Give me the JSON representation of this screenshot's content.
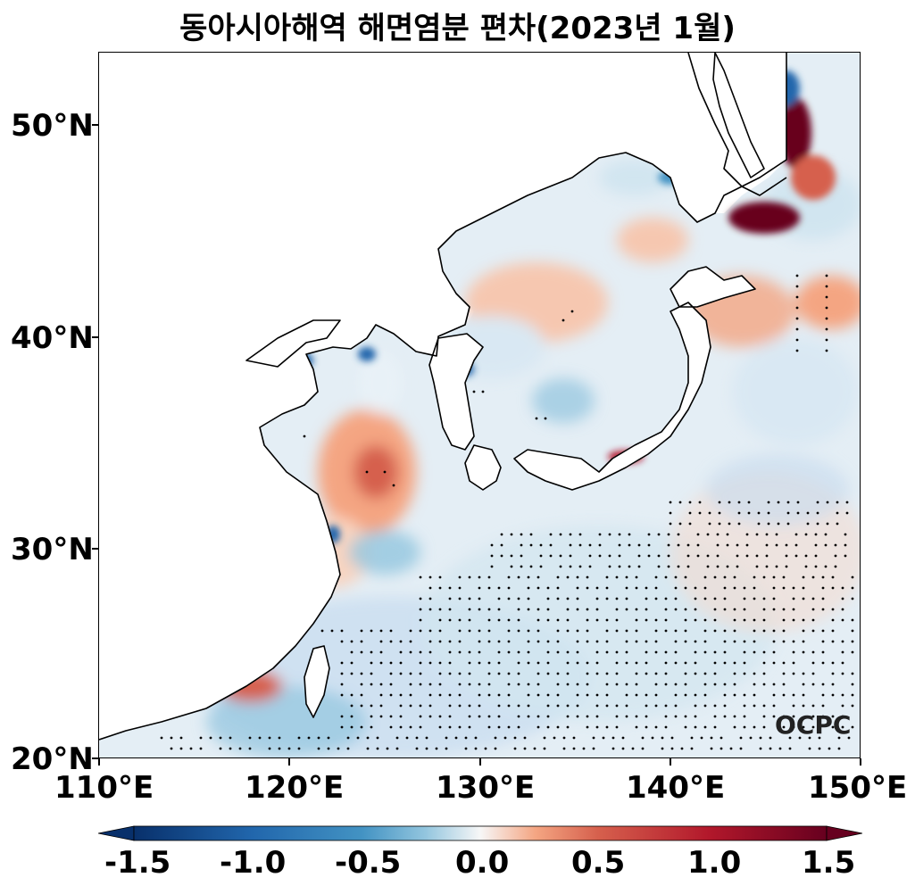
{
  "title": "동아시아해역 해면염분 편차(2023년 1월)",
  "map": {
    "extent": {
      "lon": [
        110,
        150
      ],
      "lat": [
        20,
        53.4
      ]
    },
    "lat_ticks": [
      {
        "value": 50,
        "label": "50°N"
      },
      {
        "value": 40,
        "label": "40°N"
      },
      {
        "value": 30,
        "label": "30°N"
      },
      {
        "value": 20,
        "label": "20°N"
      }
    ],
    "lon_ticks": [
      {
        "value": 110,
        "label": "110°E"
      },
      {
        "value": 120,
        "label": "120°E"
      },
      {
        "value": 130,
        "label": "130°E"
      },
      {
        "value": 140,
        "label": "140°E"
      },
      {
        "value": 150,
        "label": "150°E"
      }
    ],
    "stippling": "significance dots",
    "logo_text": "OCPC"
  },
  "colorbar": {
    "colormap": "RdBu_r",
    "range": [
      -1.5,
      1.5
    ],
    "extend": "both",
    "ticks": [
      "-1.5",
      "-1.0",
      "-0.5",
      "0.0",
      "0.5",
      "1.0",
      "1.5"
    ],
    "colors": {
      "min": "#08306b",
      "neg": "#4393c3",
      "zero": "#f7f7f7",
      "pos": "#d6604d",
      "max": "#67001f"
    }
  }
}
